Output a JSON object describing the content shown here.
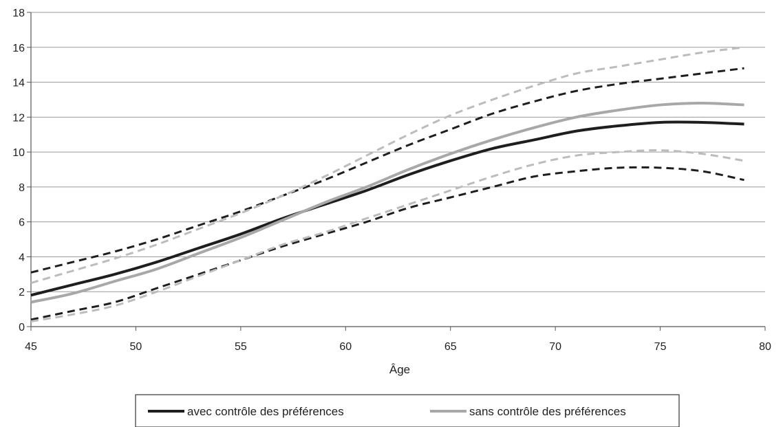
{
  "chart_data": {
    "type": "line",
    "title": "",
    "xlabel": "Âge",
    "ylabel": "",
    "xlim": [
      45,
      80
    ],
    "ylim": [
      0,
      18
    ],
    "x_ticks": [
      45,
      50,
      55,
      60,
      65,
      70,
      75,
      80
    ],
    "y_ticks": [
      0,
      2,
      4,
      6,
      8,
      10,
      12,
      14,
      16,
      18
    ],
    "grid": "horizontal",
    "legend": {
      "placement": "bottom-center",
      "entries": [
        "avec contrôle des préférences",
        "sans contrôle des préférences"
      ]
    },
    "x": [
      45,
      47,
      49,
      51,
      53,
      55,
      57,
      59,
      61,
      63,
      65,
      67,
      69,
      71,
      73,
      75,
      77,
      79
    ],
    "series": [
      {
        "name": "avec contrôle des préférences",
        "role": "estimate",
        "color": "#1e1e1e",
        "dashed": false,
        "values": [
          1.8,
          2.4,
          3.0,
          3.7,
          4.5,
          5.3,
          6.2,
          7.0,
          7.8,
          8.7,
          9.5,
          10.2,
          10.7,
          11.2,
          11.5,
          11.7,
          11.7,
          11.6
        ]
      },
      {
        "name": "sans contrôle des préférences",
        "role": "estimate",
        "color": "#a8a8a8",
        "dashed": false,
        "values": [
          1.4,
          1.9,
          2.6,
          3.3,
          4.2,
          5.1,
          6.1,
          7.1,
          8.0,
          9.0,
          9.9,
          10.7,
          11.4,
          12.0,
          12.4,
          12.7,
          12.8,
          12.7
        ]
      },
      {
        "role": "upper-bound",
        "of": "avec contrôle des préférences",
        "color": "#1e1e1e",
        "dashed": true,
        "values": [
          3.1,
          3.7,
          4.3,
          5.0,
          5.8,
          6.6,
          7.5,
          8.4,
          9.4,
          10.4,
          11.3,
          12.2,
          12.9,
          13.5,
          13.9,
          14.2,
          14.5,
          14.8
        ]
      },
      {
        "role": "lower-bound",
        "of": "avec contrôle des préférences",
        "color": "#1e1e1e",
        "dashed": true,
        "values": [
          0.4,
          0.9,
          1.4,
          2.2,
          3.0,
          3.8,
          4.6,
          5.3,
          6.0,
          6.8,
          7.4,
          8.0,
          8.6,
          8.9,
          9.1,
          9.1,
          8.9,
          8.4
        ]
      },
      {
        "role": "upper-bound",
        "of": "sans contrôle des préférences",
        "color": "#bcbcbc",
        "dashed": true,
        "values": [
          2.5,
          3.2,
          3.9,
          4.7,
          5.6,
          6.5,
          7.5,
          8.6,
          9.8,
          11.0,
          12.1,
          13.0,
          13.8,
          14.5,
          14.9,
          15.3,
          15.7,
          16.0
        ]
      },
      {
        "role": "lower-bound",
        "of": "sans contrôle des préférences",
        "color": "#bcbcbc",
        "dashed": true,
        "values": [
          0.3,
          0.7,
          1.2,
          2.0,
          2.9,
          3.8,
          4.7,
          5.4,
          6.2,
          7.0,
          7.8,
          8.6,
          9.3,
          9.8,
          10.0,
          10.1,
          9.9,
          9.5
        ]
      }
    ]
  }
}
